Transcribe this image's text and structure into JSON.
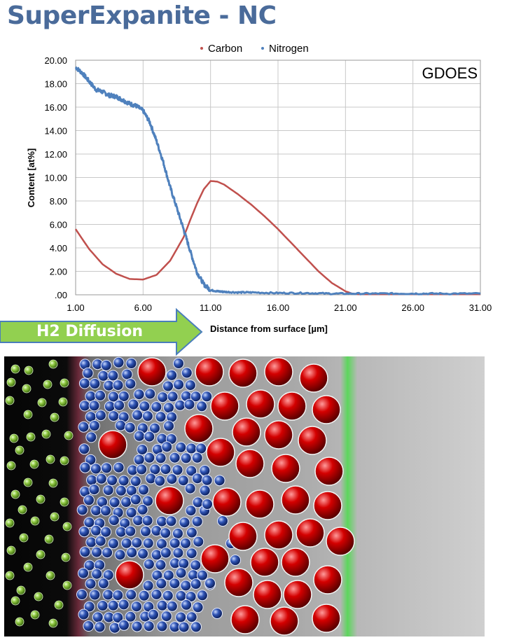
{
  "slide": {
    "title": "SuperExpanite - NC",
    "arrow_label": "H2 Diffusion"
  },
  "chart_data": {
    "type": "line",
    "title": "",
    "annotation": "GDOES",
    "xlabel": "Distance from surface [µm]",
    "ylabel": "Content [at%]",
    "xlim": [
      1,
      31
    ],
    "ylim": [
      0,
      20
    ],
    "x_ticks": [
      "1.00",
      "6.00",
      "11.00",
      "16.00",
      "21.00",
      "26.00",
      "31.00"
    ],
    "y_ticks": [
      ".00",
      "2.00",
      "4.00",
      "6.00",
      "8.00",
      "10.00",
      "12.00",
      "14.00",
      "16.00",
      "18.00",
      "20.00"
    ],
    "grid": true,
    "legend_position": "top-center",
    "series": [
      {
        "name": "Carbon",
        "color": "#c0504d",
        "x": [
          1,
          2,
          3,
          4,
          5,
          6,
          7,
          8,
          9,
          9.5,
          10,
          10.5,
          11,
          11.5,
          12,
          13,
          14,
          15,
          16,
          17,
          18,
          19,
          20,
          21,
          21.5,
          22,
          24,
          26,
          28,
          31
        ],
        "y": [
          5.6,
          3.9,
          2.6,
          1.8,
          1.35,
          1.3,
          1.7,
          2.9,
          4.9,
          6.4,
          7.8,
          9.0,
          9.7,
          9.65,
          9.4,
          8.6,
          7.7,
          6.7,
          5.6,
          4.4,
          3.2,
          2.0,
          1.0,
          0.3,
          0.1,
          0.05,
          0.05,
          0.05,
          0.05,
          0.05
        ]
      },
      {
        "name": "Nitrogen",
        "color": "#4f81bd",
        "x": [
          1,
          1.5,
          2,
          2.5,
          3,
          3.5,
          4,
          4.5,
          5,
          5.5,
          6,
          6.5,
          7,
          7.5,
          8,
          8.5,
          9,
          9.5,
          10,
          10.5,
          11,
          11.5,
          12,
          13,
          14,
          16,
          18,
          20,
          22,
          24,
          26,
          28,
          31
        ],
        "y": [
          19.4,
          18.9,
          18.2,
          17.5,
          17.3,
          17.0,
          16.9,
          16.6,
          16.3,
          16.1,
          15.7,
          14.7,
          13.1,
          11.3,
          9.2,
          7.4,
          5.6,
          3.7,
          1.9,
          0.9,
          0.4,
          0.3,
          0.25,
          0.2,
          0.2,
          0.15,
          0.15,
          0.1,
          0.1,
          0.1,
          0.1,
          0.1,
          0.1
        ]
      }
    ]
  },
  "micrograph": {
    "description_label": "",
    "colors": {
      "background_dark": "#0a0a0a",
      "hydrogen": "#8dc63f",
      "nitrogen": "#2f54b5",
      "carbon": "#d40000",
      "interface_green": "#5cd65c"
    }
  }
}
